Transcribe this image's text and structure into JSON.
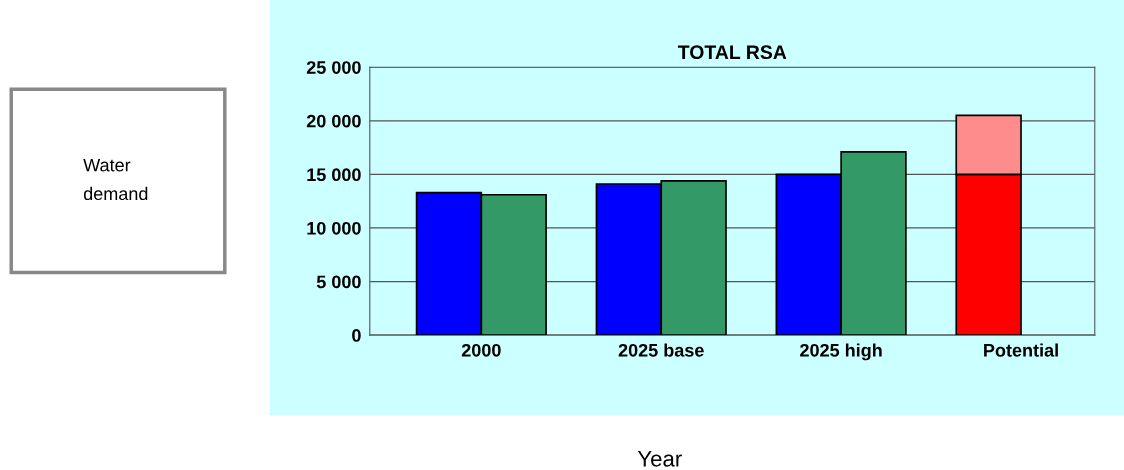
{
  "chart_data": {
    "type": "bar",
    "title": "TOTAL RSA",
    "xlabel": "Year",
    "annotations": [
      "Water\ndemand"
    ],
    "categories": [
      "2000",
      "2025 base",
      "2025 high",
      "Potential"
    ],
    "series": [
      {
        "colors": [
          "#0000ff",
          "#0000ff",
          "#0000ff",
          "#ff0000"
        ],
        "values": [
          13300,
          14100,
          15000,
          15000
        ]
      },
      {
        "color": "#ff8c8c",
        "values": [
          null,
          null,
          null,
          5500
        ],
        "base": [
          null,
          null,
          null,
          15000
        ]
      },
      {
        "color": "#339966",
        "values": [
          13100,
          14400,
          17100,
          null
        ]
      }
    ],
    "ylim": [
      0,
      25000
    ],
    "yticks": [
      {
        "value": 0,
        "label": "0"
      },
      {
        "value": 5000,
        "label": "5 000"
      },
      {
        "value": 10000,
        "label": "10 000"
      },
      {
        "value": 15000,
        "label": "15 000"
      },
      {
        "value": 20000,
        "label": "20 000"
      },
      {
        "value": 25000,
        "label": "25 000"
      }
    ],
    "grid": "y",
    "legend": false
  }
}
